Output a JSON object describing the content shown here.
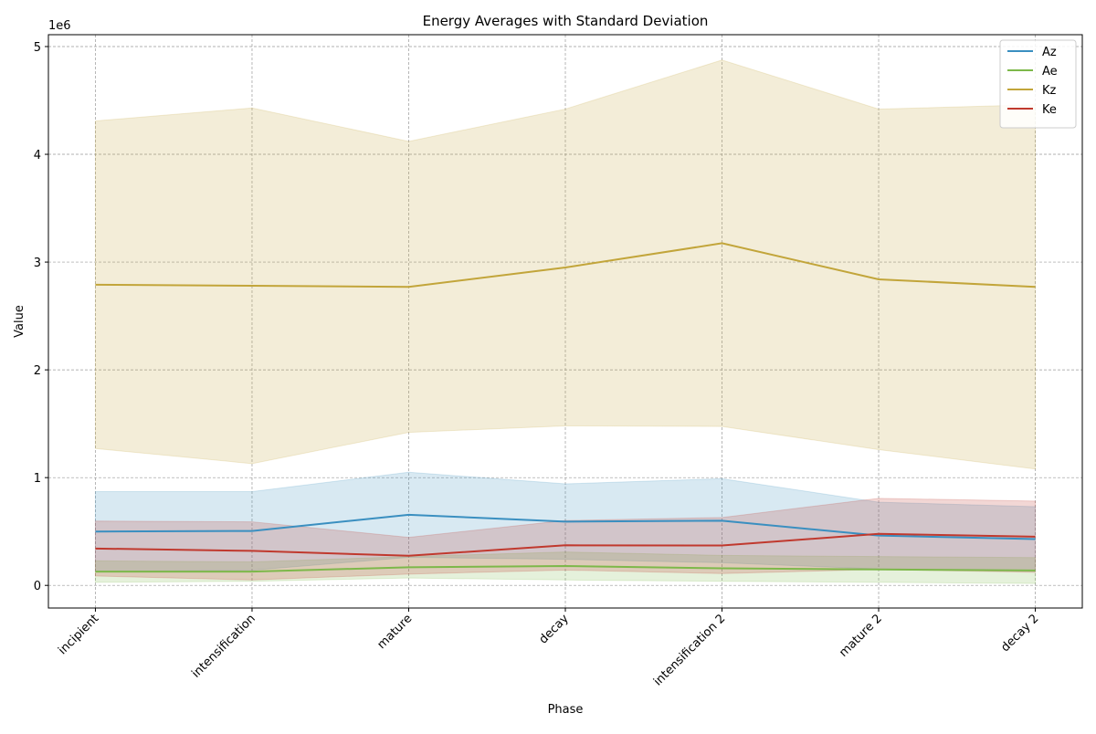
{
  "chart_data": {
    "type": "line",
    "title": "Energy Averages with Standard Deviation",
    "x_label": "Phase",
    "y_label": "Value",
    "y_offset_label": "1e6",
    "categories": [
      "incipient",
      "intensification",
      "mature",
      "decay",
      "intensification 2",
      "mature 2",
      "decay 2"
    ],
    "series": [
      {
        "name": "Az",
        "color": "#3a8fc0",
        "values": [
          500000,
          505000,
          655000,
          592000,
          600000,
          462000,
          430000
        ],
        "std": [
          370000,
          365000,
          395000,
          350000,
          390000,
          310000,
          300000
        ]
      },
      {
        "name": "Ae",
        "color": "#7db84a",
        "values": [
          128000,
          128000,
          168000,
          180000,
          158000,
          148000,
          138000
        ],
        "std": [
          100000,
          90000,
          100000,
          130000,
          120000,
          120000,
          120000
        ]
      },
      {
        "name": "Kz",
        "color": "#c2a53a",
        "values": [
          2790000,
          2780000,
          2770000,
          2950000,
          3175000,
          2840000,
          2770000
        ],
        "std": [
          1520000,
          1650000,
          1350000,
          1470000,
          1700000,
          1580000,
          1690000
        ]
      },
      {
        "name": "Ke",
        "color": "#c0392e",
        "values": [
          342000,
          320000,
          275000,
          372000,
          370000,
          478000,
          452000
        ],
        "std": [
          255000,
          270000,
          170000,
          230000,
          260000,
          330000,
          330000
        ]
      }
    ],
    "ylim": [
      -210000,
      5110000
    ],
    "yticks": [
      {
        "value": 0,
        "label": "0"
      },
      {
        "value": 1000000,
        "label": "1"
      },
      {
        "value": 2000000,
        "label": "2"
      },
      {
        "value": 3000000,
        "label": "3"
      },
      {
        "value": 4000000,
        "label": "4"
      },
      {
        "value": 5000000,
        "label": "5"
      }
    ],
    "grid": true,
    "legend": "upper right"
  }
}
